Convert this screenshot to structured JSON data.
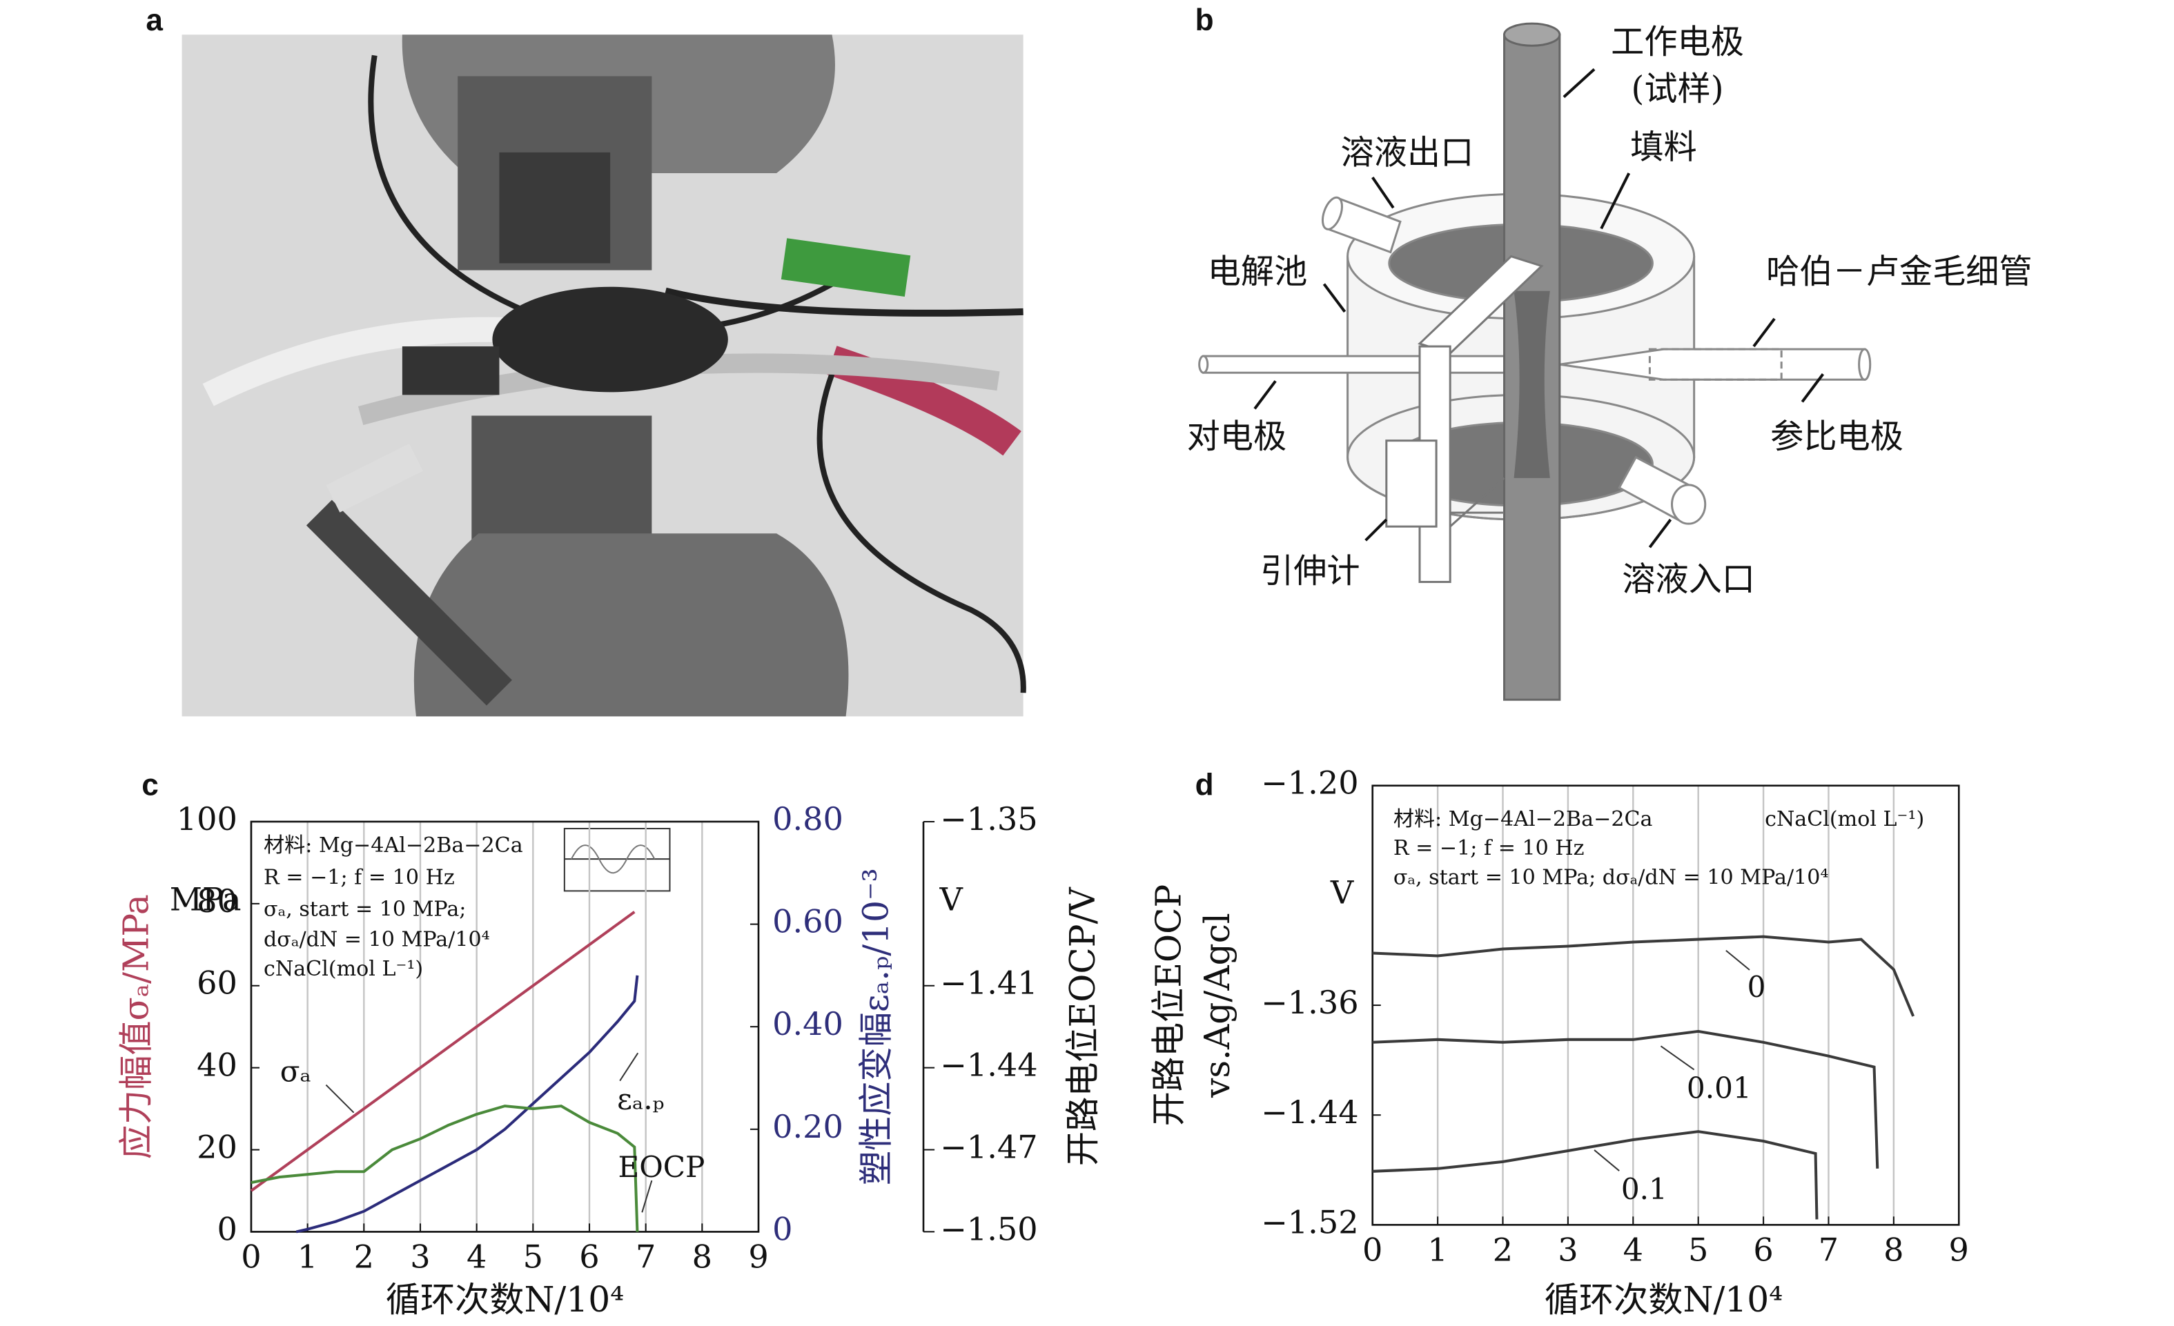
{
  "panel_labels": [
    "a",
    "b",
    "c",
    "d"
  ],
  "diagram": {
    "labels": [
      "工作电极",
      "(试样)",
      "填料",
      "溶液出口",
      "电解池",
      "哈伯－卢金毛细管",
      "对电极",
      "参比电极",
      "引伸计",
      "溶液入口"
    ]
  },
  "chart_data": [
    {
      "type": "line",
      "xlabel": "循环次数N/10⁴",
      "ylabel": "应力幅值σₐ/MPa",
      "y2label": "塑性应变幅εₐ.ₚ/10⁻³",
      "y3label": "开路电位EOCP/V",
      "y_unit": "MPa",
      "y3_unit": "V",
      "legend_text": [
        "材料: Mg−4Al−2Ba−2Ca",
        "R = −1; f = 10 Hz",
        "σₐ, start = 10 MPa;",
        "dσₐ/dN = 10 MPa/10⁴",
        "cNaCl(mol L⁻¹)"
      ],
      "xlim": [
        0,
        9
      ],
      "xticks": [
        0,
        1,
        2,
        3,
        4,
        5,
        6,
        7,
        8,
        9
      ],
      "ylim": [
        0,
        100
      ],
      "yticks": [
        0,
        20,
        40,
        60,
        80,
        100
      ],
      "y2lim": [
        0,
        0.8
      ],
      "y2ticks": [
        0,
        {
          "value": 0.2,
          "label": "0.20"
        },
        {
          "value": 0.4,
          "label": "0.40"
        },
        {
          "value": 0.6,
          "label": "0.60"
        },
        {
          "value": 0.8,
          "label": "0.80"
        }
      ],
      "y3lim": [
        -1.5,
        -1.35
      ],
      "y3ticks": [
        {
          "value": -1.5,
          "label": "−1.50"
        },
        {
          "value": -1.47,
          "label": "−1.47"
        },
        {
          "value": -1.44,
          "label": "−1.44"
        },
        {
          "value": -1.41,
          "label": "−1.41"
        },
        {
          "value": -1.35,
          "label": "−1.35"
        }
      ],
      "grid": "x",
      "series": [
        {
          "name": "σₐ",
          "color": "#b0405a",
          "x": [
            0,
            6.8
          ],
          "values": [
            10,
            78
          ]
        },
        {
          "name": "εₐ.ₚ",
          "color": "#2b2b7a",
          "axis": "y2",
          "x": [
            0.8,
            1,
            1.5,
            2,
            2.5,
            3,
            3.5,
            4,
            4.5,
            5,
            5.5,
            6,
            6.5,
            6.8,
            6.85
          ],
          "values": [
            0,
            0.005,
            0.02,
            0.04,
            0.07,
            0.1,
            0.13,
            0.16,
            0.2,
            0.25,
            0.3,
            0.35,
            0.41,
            0.45,
            0.5
          ]
        },
        {
          "name": "EOCP",
          "color": "#4a8a3a",
          "axis": "y3",
          "x": [
            0,
            0.5,
            1,
            1.5,
            2,
            2.5,
            3,
            3.5,
            4,
            4.5,
            5,
            5.5,
            6,
            6.5,
            6.8,
            6.85
          ],
          "values": [
            -1.482,
            -1.48,
            -1.479,
            -1.478,
            -1.478,
            -1.47,
            -1.466,
            -1.461,
            -1.457,
            -1.454,
            -1.455,
            -1.454,
            -1.46,
            -1.464,
            -1.469,
            -1.5
          ]
        }
      ]
    },
    {
      "type": "line",
      "xlabel": "循环次数N/10⁴",
      "ylabel": [
        "开路电位EOCP",
        "vs.Ag/Agcl"
      ],
      "y_unit": "V",
      "legend_text": [
        "材料: Mg−4Al−2Ba−2Ca",
        "cNaCl(mol L⁻¹)",
        "R = −1; f = 10 Hz",
        "σₐ, start = 10 MPa; dσₐ/dN = 10 MPa/10⁴"
      ],
      "xlim": [
        0,
        9
      ],
      "xticks": [
        0,
        1,
        2,
        3,
        4,
        5,
        6,
        7,
        8,
        9
      ],
      "ylim": [
        -1.52,
        -1.2
      ],
      "yticks": [
        {
          "value": -1.52,
          "label": "−1.52"
        },
        {
          "value": -1.44,
          "label": "−1.44"
        },
        {
          "value": -1.36,
          "label": "−1.36"
        },
        {
          "value": -1.2,
          "label": "−1.20"
        }
      ],
      "grid": "x",
      "series": [
        {
          "name": "0",
          "color": "#3a3a3a",
          "x": [
            0,
            1,
            2,
            3,
            4,
            5,
            6,
            7,
            7.5,
            8,
            8.3
          ],
          "values": [
            -1.322,
            -1.324,
            -1.319,
            -1.317,
            -1.314,
            -1.312,
            -1.31,
            -1.314,
            -1.312,
            -1.334,
            -1.368
          ]
        },
        {
          "name": "0.01",
          "color": "#3a3a3a",
          "x": [
            0,
            1,
            2,
            3,
            4,
            5,
            6,
            7,
            7.7,
            7.75
          ],
          "values": [
            -1.387,
            -1.385,
            -1.387,
            -1.385,
            -1.385,
            -1.379,
            -1.387,
            -1.397,
            -1.405,
            -1.479
          ]
        },
        {
          "name": "0.1",
          "color": "#3a3a3a",
          "x": [
            0,
            1,
            2,
            3,
            4,
            5,
            6,
            6.8,
            6.82
          ],
          "values": [
            -1.481,
            -1.479,
            -1.474,
            -1.466,
            -1.458,
            -1.452,
            -1.459,
            -1.468,
            -1.516
          ]
        }
      ]
    }
  ]
}
